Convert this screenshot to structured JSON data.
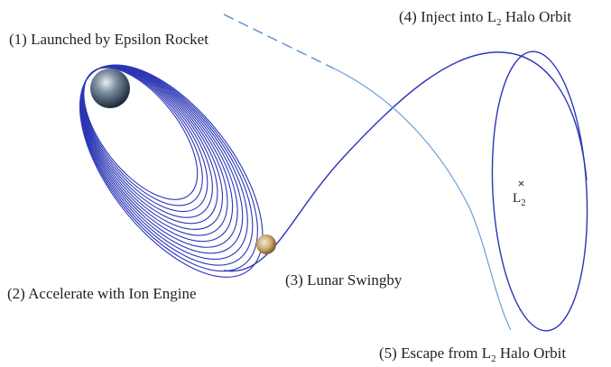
{
  "labels": [
    {
      "text": "(1) Launched by Epsilon Rocket"
    },
    {
      "text": "(2) Accelerate with Ion Engine"
    },
    {
      "text": "(3) Lunar Swingby"
    },
    {
      "text": "(4) Inject into L",
      "sub": "2",
      "tail": " Halo Orbit"
    },
    {
      "text": "(5) Escape from L",
      "sub": "2",
      "tail": " Halo Orbit"
    },
    {
      "text": "L",
      "sub": "2"
    }
  ]
}
